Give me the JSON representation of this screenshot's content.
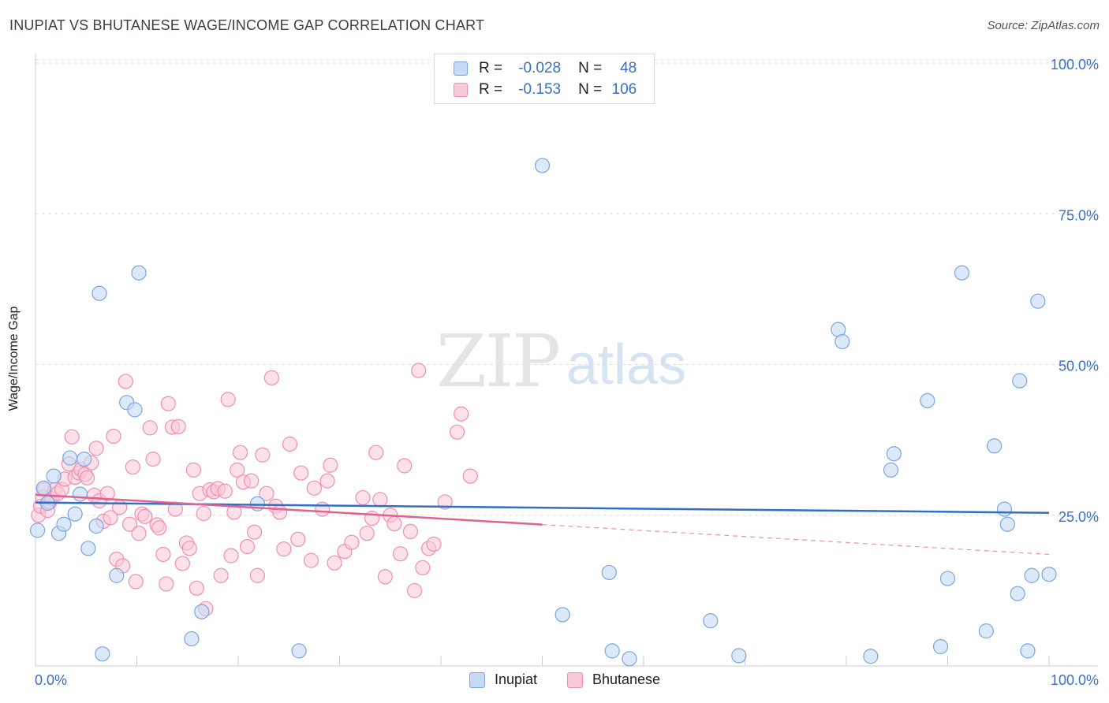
{
  "header": {
    "title": "INUPIAT VS BHUTANESE WAGE/INCOME GAP CORRELATION CHART",
    "source": "Source: ZipAtlas.com"
  },
  "watermark": {
    "zip": "ZIP",
    "atlas": "atlas"
  },
  "legend": {
    "rows": [
      {
        "r_label": "R =",
        "r_value": "-0.028",
        "n_label": "N =",
        "n_value": "48",
        "color": "#a9c8f0"
      },
      {
        "r_label": "R =",
        "r_value": "-0.153",
        "n_label": "N =",
        "n_value": "106",
        "color": "#f7b9cd"
      }
    ]
  },
  "bottom_legend": {
    "inupiat": "Inupiat",
    "bhutanese": "Bhutanese"
  },
  "chart_data": {
    "type": "scatter",
    "title": "INUPIAT VS BHUTANESE WAGE/INCOME GAP CORRELATION CHART",
    "ylabel": "Wage/Income Gap",
    "xlabel": "",
    "xlim": [
      0,
      100
    ],
    "ylim": [
      0,
      100
    ],
    "x_tick_labels": [
      "0.0%",
      "100.0%"
    ],
    "y_tick_labels": [
      "25.0%",
      "50.0%",
      "75.0%",
      "100.0%"
    ],
    "y_ticks": [
      25,
      50,
      75,
      100
    ],
    "grid": true,
    "legend_position": "top-center",
    "colors": {
      "inupiat_fill": "#c5daf5",
      "inupiat_stroke": "#7aa5de",
      "inupiat_line": "#2f6fc9",
      "bhutanese_fill": "#f9c9d8",
      "bhutanese_stroke": "#ee8fae",
      "bhutanese_line": "#e0628f",
      "tick_label": "#3a6fc4"
    },
    "series": [
      {
        "name": "Inupiat",
        "trend": {
          "x": [
            0,
            100
          ],
          "y": [
            27.1,
            25.4
          ]
        },
        "points": [
          [
            0.2,
            22.5
          ],
          [
            0.8,
            29.5
          ],
          [
            1.2,
            27.0
          ],
          [
            1.8,
            31.5
          ],
          [
            2.3,
            22.0
          ],
          [
            2.8,
            23.5
          ],
          [
            3.4,
            34.5
          ],
          [
            3.9,
            25.2
          ],
          [
            4.4,
            28.5
          ],
          [
            4.8,
            34.3
          ],
          [
            5.2,
            19.5
          ],
          [
            6.0,
            23.2
          ],
          [
            6.3,
            61.8
          ],
          [
            6.6,
            2.0
          ],
          [
            8.0,
            15.0
          ],
          [
            9.0,
            43.7
          ],
          [
            9.8,
            42.5
          ],
          [
            10.2,
            65.2
          ],
          [
            15.4,
            4.5
          ],
          [
            16.4,
            9.0
          ],
          [
            21.9,
            26.9
          ],
          [
            26.0,
            2.5
          ],
          [
            50.0,
            83.0
          ],
          [
            52.0,
            8.5
          ],
          [
            56.6,
            15.5
          ],
          [
            56.9,
            2.5
          ],
          [
            58.6,
            1.2
          ],
          [
            66.6,
            7.5
          ],
          [
            69.4,
            1.7
          ],
          [
            79.2,
            55.8
          ],
          [
            79.6,
            53.8
          ],
          [
            82.4,
            1.6
          ],
          [
            84.4,
            32.5
          ],
          [
            84.7,
            35.2
          ],
          [
            88.0,
            44.0
          ],
          [
            89.3,
            3.2
          ],
          [
            90.0,
            14.5
          ],
          [
            91.4,
            65.2
          ],
          [
            93.8,
            5.8
          ],
          [
            94.6,
            36.5
          ],
          [
            95.6,
            26.0
          ],
          [
            95.9,
            23.5
          ],
          [
            96.9,
            12.0
          ],
          [
            97.1,
            47.3
          ],
          [
            97.9,
            2.5
          ],
          [
            98.3,
            15.0
          ],
          [
            98.9,
            60.5
          ],
          [
            100.0,
            15.2
          ]
        ]
      },
      {
        "name": "Bhutanese",
        "trend": {
          "x": [
            0,
            100
          ],
          "y": [
            28.4,
            18.5
          ],
          "solid_until_x": 50
        },
        "points": [
          [
            0.3,
            25.0
          ],
          [
            0.5,
            26.5
          ],
          [
            0.7,
            28.0
          ],
          [
            0.9,
            29.3
          ],
          [
            1.2,
            25.8
          ],
          [
            1.4,
            27.2
          ],
          [
            1.6,
            27.8
          ],
          [
            1.9,
            29.2
          ],
          [
            2.2,
            28.6
          ],
          [
            2.6,
            29.3
          ],
          [
            2.9,
            31.0
          ],
          [
            3.3,
            33.5
          ],
          [
            3.6,
            38.0
          ],
          [
            3.9,
            31.3
          ],
          [
            4.3,
            32.0
          ],
          [
            4.5,
            32.6
          ],
          [
            4.9,
            31.8
          ],
          [
            5.1,
            31.2
          ],
          [
            5.5,
            33.7
          ],
          [
            5.8,
            28.3
          ],
          [
            6.0,
            36.1
          ],
          [
            6.3,
            27.4
          ],
          [
            6.7,
            24.0
          ],
          [
            7.1,
            28.6
          ],
          [
            7.4,
            24.6
          ],
          [
            7.7,
            38.1
          ],
          [
            8.0,
            17.7
          ],
          [
            8.3,
            26.3
          ],
          [
            8.6,
            16.6
          ],
          [
            8.9,
            47.2
          ],
          [
            9.3,
            23.5
          ],
          [
            9.6,
            33.0
          ],
          [
            9.9,
            14.0
          ],
          [
            10.2,
            22.0
          ],
          [
            10.5,
            25.2
          ],
          [
            10.8,
            24.8
          ],
          [
            11.3,
            39.5
          ],
          [
            11.6,
            34.3
          ],
          [
            12.0,
            23.4
          ],
          [
            12.2,
            22.9
          ],
          [
            12.6,
            18.5
          ],
          [
            12.9,
            13.6
          ],
          [
            13.1,
            43.5
          ],
          [
            13.5,
            39.6
          ],
          [
            13.8,
            26.0
          ],
          [
            14.1,
            39.7
          ],
          [
            14.5,
            17.0
          ],
          [
            14.9,
            20.4
          ],
          [
            15.2,
            19.5
          ],
          [
            15.6,
            32.5
          ],
          [
            15.9,
            12.9
          ],
          [
            16.2,
            28.6
          ],
          [
            16.6,
            25.3
          ],
          [
            16.8,
            9.5
          ],
          [
            17.2,
            29.2
          ],
          [
            17.6,
            28.9
          ],
          [
            18.0,
            29.4
          ],
          [
            18.3,
            15.0
          ],
          [
            18.7,
            29.0
          ],
          [
            19.0,
            44.2
          ],
          [
            19.3,
            18.3
          ],
          [
            19.6,
            25.5
          ],
          [
            19.9,
            32.5
          ],
          [
            20.2,
            35.4
          ],
          [
            20.5,
            30.5
          ],
          [
            20.9,
            19.8
          ],
          [
            21.3,
            30.7
          ],
          [
            21.6,
            22.2
          ],
          [
            21.9,
            15.0
          ],
          [
            22.4,
            35.0
          ],
          [
            22.8,
            28.6
          ],
          [
            23.3,
            47.8
          ],
          [
            23.7,
            26.5
          ],
          [
            24.1,
            25.5
          ],
          [
            24.5,
            19.4
          ],
          [
            25.1,
            36.8
          ],
          [
            25.9,
            21.0
          ],
          [
            26.2,
            32.0
          ],
          [
            27.2,
            17.5
          ],
          [
            27.5,
            29.5
          ],
          [
            28.3,
            26.0
          ],
          [
            28.8,
            30.7
          ],
          [
            29.1,
            33.3
          ],
          [
            29.5,
            17.1
          ],
          [
            30.5,
            19.0
          ],
          [
            31.2,
            20.5
          ],
          [
            32.3,
            27.9
          ],
          [
            32.7,
            22.0
          ],
          [
            33.2,
            24.5
          ],
          [
            33.6,
            35.4
          ],
          [
            34.0,
            27.6
          ],
          [
            34.5,
            14.8
          ],
          [
            35.0,
            25.0
          ],
          [
            35.4,
            23.6
          ],
          [
            36.0,
            18.6
          ],
          [
            36.4,
            33.2
          ],
          [
            37.0,
            22.3
          ],
          [
            37.4,
            12.5
          ],
          [
            37.8,
            49.0
          ],
          [
            38.2,
            16.3
          ],
          [
            38.8,
            19.5
          ],
          [
            39.3,
            20.2
          ],
          [
            40.4,
            27.2
          ],
          [
            41.6,
            38.8
          ],
          [
            42.0,
            41.8
          ],
          [
            42.9,
            31.5
          ]
        ]
      }
    ]
  }
}
